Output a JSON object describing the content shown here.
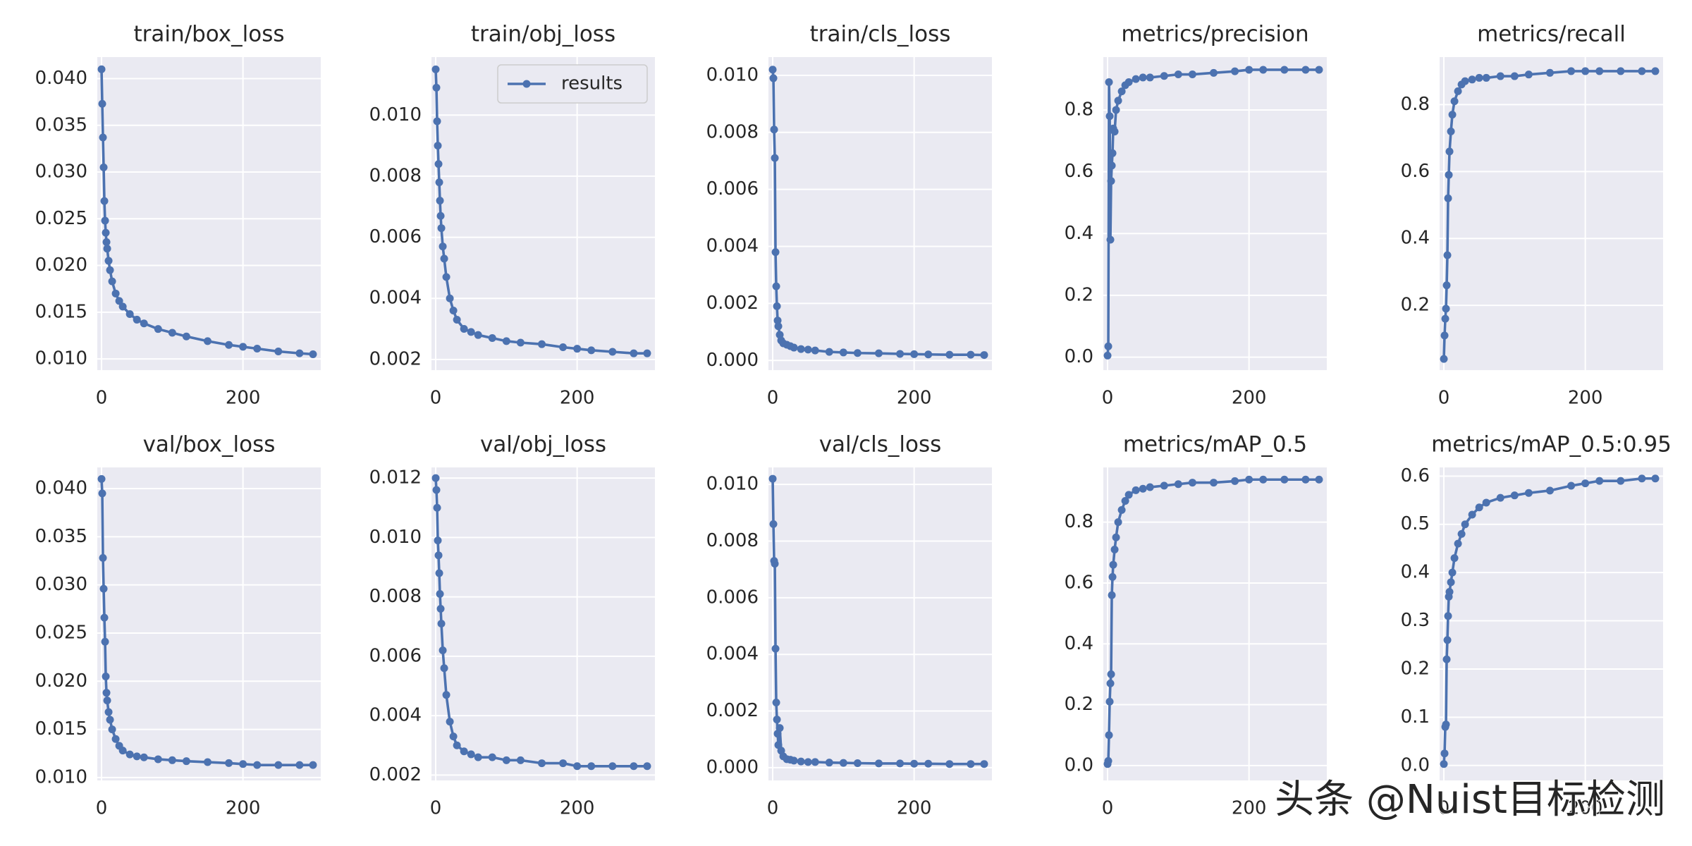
{
  "chart_data": [
    {
      "type": "line",
      "title": "train/box_loss",
      "x": [
        0,
        1,
        2,
        3,
        4,
        5,
        6,
        7,
        8,
        10,
        12,
        15,
        20,
        25,
        30,
        40,
        50,
        60,
        80,
        100,
        120,
        150,
        180,
        200,
        220,
        250,
        280,
        299
      ],
      "values": [
        0.041,
        0.0373,
        0.0337,
        0.0305,
        0.0269,
        0.0248,
        0.0235,
        0.0225,
        0.0218,
        0.0205,
        0.0195,
        0.0183,
        0.017,
        0.0162,
        0.0156,
        0.0148,
        0.0142,
        0.0138,
        0.0132,
        0.0128,
        0.0124,
        0.0119,
        0.0115,
        0.0113,
        0.0111,
        0.0108,
        0.0106,
        0.0105
      ],
      "color": "#4c72b0",
      "xlim": [
        -6,
        310
      ],
      "xticks": [
        0,
        200
      ],
      "ylim": [
        0.0088,
        0.0423
      ],
      "yticks": [
        {
          "value": 0.01,
          "label": "0.010"
        },
        0.015,
        {
          "value": 0.02,
          "label": "0.020"
        },
        0.025,
        {
          "value": 0.03,
          "label": "0.030"
        },
        0.035,
        {
          "value": 0.04,
          "label": "0.040"
        }
      ],
      "grid": true
    },
    {
      "type": "line",
      "title": "train/obj_loss",
      "x": [
        0,
        1,
        2,
        3,
        4,
        5,
        6,
        7,
        8,
        10,
        12,
        15,
        20,
        25,
        30,
        40,
        50,
        60,
        80,
        100,
        120,
        150,
        180,
        200,
        220,
        250,
        280,
        299
      ],
      "series": [
        {
          "name": "results",
          "color": "#4c72b0",
          "values": [
            0.0115,
            0.0109,
            0.0098,
            0.009,
            0.0084,
            0.0078,
            0.0072,
            0.0067,
            0.0063,
            0.0057,
            0.0053,
            0.0047,
            0.004,
            0.0036,
            0.0033,
            0.003,
            0.0029,
            0.0028,
            0.0027,
            0.0026,
            0.00255,
            0.0025,
            0.0024,
            0.00235,
            0.0023,
            0.00225,
            0.0022,
            0.0022
          ]
        }
      ],
      "legend": "upper right",
      "xlim": [
        -6,
        310
      ],
      "xticks": [
        0,
        200
      ],
      "ylim": [
        0.00165,
        0.0119
      ],
      "yticks": [
        0.002,
        0.004,
        0.006,
        0.008,
        {
          "value": 0.01,
          "label": "0.010"
        }
      ],
      "grid": true
    },
    {
      "type": "line",
      "title": "train/cls_loss",
      "x": [
        0,
        1,
        2,
        3,
        4,
        5,
        6,
        7,
        8,
        10,
        12,
        15,
        20,
        25,
        30,
        40,
        50,
        60,
        80,
        100,
        120,
        150,
        180,
        200,
        220,
        250,
        280,
        299
      ],
      "values": [
        0.0102,
        0.0099,
        0.0081,
        0.0071,
        0.0038,
        0.0026,
        0.0019,
        0.0014,
        0.0012,
        0.0009,
        0.0007,
        0.0006,
        0.00055,
        0.0005,
        0.00045,
        0.0004,
        0.00038,
        0.00035,
        0.0003,
        0.00028,
        0.00026,
        0.00025,
        0.00023,
        0.00022,
        0.00021,
        0.0002,
        0.0002,
        0.00019
      ],
      "color": "#4c72b0",
      "xlim": [
        -6,
        310
      ],
      "xticks": [
        0,
        200
      ],
      "ylim": [
        -0.00034,
        0.01064
      ],
      "yticks": [
        {
          "value": 0,
          "label": "0.000"
        },
        0.002,
        0.004,
        0.006,
        0.008,
        {
          "value": 0.01,
          "label": "0.010"
        }
      ],
      "grid": true
    },
    {
      "type": "line",
      "title": "metrics/precision",
      "x": [
        0,
        1,
        2,
        3,
        4,
        5,
        6,
        7,
        8,
        10,
        12,
        15,
        20,
        25,
        30,
        40,
        50,
        60,
        80,
        100,
        120,
        150,
        180,
        200,
        220,
        250,
        280,
        299
      ],
      "values": [
        0.005,
        0.035,
        0.89,
        0.78,
        0.38,
        0.57,
        0.62,
        0.66,
        0.74,
        0.73,
        0.8,
        0.83,
        0.86,
        0.88,
        0.89,
        0.9,
        0.905,
        0.905,
        0.91,
        0.915,
        0.915,
        0.92,
        0.925,
        0.93,
        0.93,
        0.93,
        0.93,
        0.93
      ],
      "color": "#4c72b0",
      "xlim": [
        -6,
        310
      ],
      "xticks": [
        0,
        200
      ],
      "ylim": [
        -0.042,
        0.971
      ],
      "yticks": [
        {
          "value": 0,
          "label": "0.0"
        },
        0.2,
        0.4,
        0.6,
        0.8
      ],
      "grid": true
    },
    {
      "type": "line",
      "title": "metrics/recall",
      "x": [
        0,
        1,
        2,
        3,
        4,
        5,
        6,
        7,
        8,
        10,
        12,
        15,
        20,
        25,
        30,
        40,
        50,
        60,
        80,
        100,
        120,
        150,
        180,
        200,
        220,
        250,
        280,
        299
      ],
      "values": [
        0.04,
        0.11,
        0.16,
        0.19,
        0.26,
        0.35,
        0.52,
        0.59,
        0.66,
        0.72,
        0.77,
        0.81,
        0.84,
        0.86,
        0.87,
        0.875,
        0.88,
        0.88,
        0.885,
        0.885,
        0.89,
        0.895,
        0.9,
        0.9,
        0.9,
        0.9,
        0.9,
        0.9
      ],
      "color": "#4c72b0",
      "xlim": [
        -6,
        310
      ],
      "xticks": [
        0,
        200
      ],
      "ylim": [
        0.0065,
        0.942
      ],
      "yticks": [
        0.2,
        0.4,
        0.6,
        0.8
      ],
      "grid": true
    },
    {
      "type": "line",
      "title": "val/box_loss",
      "x": [
        0,
        1,
        2,
        3,
        4,
        5,
        6,
        7,
        8,
        10,
        12,
        15,
        20,
        25,
        30,
        40,
        50,
        60,
        80,
        100,
        120,
        150,
        180,
        200,
        220,
        250,
        280,
        299
      ],
      "values": [
        0.041,
        0.0395,
        0.0328,
        0.0296,
        0.0266,
        0.0241,
        0.0205,
        0.0188,
        0.018,
        0.0168,
        0.016,
        0.015,
        0.014,
        0.0133,
        0.0128,
        0.0124,
        0.0122,
        0.0121,
        0.0119,
        0.0118,
        0.0117,
        0.0116,
        0.0115,
        0.0114,
        0.0113,
        0.0113,
        0.0113,
        0.0113
      ],
      "color": "#4c72b0",
      "xlim": [
        -6,
        310
      ],
      "xticks": [
        0,
        200
      ],
      "ylim": [
        0.0097,
        0.0422
      ],
      "yticks": [
        {
          "value": 0.01,
          "label": "0.010"
        },
        0.015,
        {
          "value": 0.02,
          "label": "0.020"
        },
        0.025,
        {
          "value": 0.03,
          "label": "0.030"
        },
        0.035,
        {
          "value": 0.04,
          "label": "0.040"
        }
      ],
      "grid": true
    },
    {
      "type": "line",
      "title": "val/obj_loss",
      "x": [
        0,
        1,
        2,
        3,
        4,
        5,
        6,
        7,
        8,
        10,
        12,
        15,
        20,
        25,
        30,
        40,
        50,
        60,
        80,
        100,
        120,
        150,
        180,
        200,
        220,
        250,
        280,
        299
      ],
      "values": [
        0.012,
        0.0116,
        0.011,
        0.0099,
        0.0094,
        0.0088,
        0.0081,
        0.0076,
        0.0071,
        0.0062,
        0.0056,
        0.0047,
        0.0038,
        0.0033,
        0.003,
        0.0028,
        0.0027,
        0.0026,
        0.0026,
        0.0025,
        0.0025,
        0.0024,
        0.0024,
        0.0023,
        0.0023,
        0.0023,
        0.0023,
        0.0023
      ],
      "color": "#4c72b0",
      "xlim": [
        -6,
        310
      ],
      "xticks": [
        0,
        200
      ],
      "ylim": [
        0.00182,
        0.01236
      ],
      "yticks": [
        0.002,
        0.004,
        0.006,
        0.008,
        {
          "value": 0.01,
          "label": "0.010"
        },
        0.012
      ],
      "grid": true
    },
    {
      "type": "line",
      "title": "val/cls_loss",
      "x": [
        0,
        1,
        2,
        3,
        4,
        5,
        6,
        7,
        8,
        10,
        12,
        15,
        20,
        25,
        30,
        40,
        50,
        60,
        80,
        100,
        120,
        150,
        180,
        200,
        220,
        250,
        280,
        299
      ],
      "values": [
        0.0102,
        0.0086,
        0.0073,
        0.0072,
        0.0042,
        0.0023,
        0.0017,
        0.0012,
        0.0008,
        0.0014,
        0.0006,
        0.0004,
        0.0003,
        0.00028,
        0.00025,
        0.00022,
        0.0002,
        0.0002,
        0.00018,
        0.00017,
        0.00016,
        0.00015,
        0.00015,
        0.00014,
        0.00014,
        0.00013,
        0.00013,
        0.00013
      ],
      "color": "#4c72b0",
      "xlim": [
        -6,
        310
      ],
      "xticks": [
        0,
        200
      ],
      "ylim": [
        -0.00045,
        0.0106
      ],
      "yticks": [
        {
          "value": 0,
          "label": "0.000"
        },
        0.002,
        0.004,
        0.006,
        0.008,
        {
          "value": 0.01,
          "label": "0.010"
        }
      ],
      "grid": true
    },
    {
      "type": "line",
      "title": "metrics/mAP_0.5",
      "x": [
        0,
        1,
        2,
        3,
        4,
        5,
        6,
        7,
        8,
        10,
        12,
        15,
        20,
        25,
        30,
        40,
        50,
        60,
        80,
        100,
        120,
        150,
        180,
        200,
        220,
        250,
        280,
        299
      ],
      "values": [
        0.005,
        0.015,
        0.1,
        0.21,
        0.27,
        0.3,
        0.56,
        0.62,
        0.66,
        0.71,
        0.75,
        0.8,
        0.84,
        0.87,
        0.89,
        0.905,
        0.91,
        0.915,
        0.92,
        0.925,
        0.93,
        0.93,
        0.935,
        0.94,
        0.94,
        0.94,
        0.94,
        0.94
      ],
      "color": "#4c72b0",
      "xlim": [
        -6,
        310
      ],
      "xticks": [
        0,
        200
      ],
      "ylim": [
        -0.049,
        0.98
      ],
      "yticks": [
        {
          "value": 0,
          "label": "0.0"
        },
        0.2,
        0.4,
        0.6,
        0.8
      ],
      "grid": true
    },
    {
      "type": "line",
      "title": "metrics/mAP_0.5:0.95",
      "x": [
        0,
        1,
        2,
        3,
        4,
        5,
        6,
        7,
        8,
        10,
        12,
        15,
        20,
        25,
        30,
        40,
        50,
        60,
        80,
        100,
        120,
        150,
        180,
        200,
        220,
        250,
        280,
        299
      ],
      "values": [
        0.003,
        0.025,
        0.08,
        0.085,
        0.22,
        0.26,
        0.31,
        0.35,
        0.36,
        0.38,
        0.4,
        0.43,
        0.46,
        0.48,
        0.5,
        0.52,
        0.535,
        0.545,
        0.555,
        0.56,
        0.565,
        0.57,
        0.58,
        0.585,
        0.59,
        0.59,
        0.595,
        0.595
      ],
      "color": "#4c72b0",
      "xlim": [
        -6,
        310
      ],
      "xticks": [
        0,
        200
      ],
      "ylim": [
        -0.031,
        0.618
      ],
      "yticks": [
        {
          "value": 0,
          "label": "0.0"
        },
        0.1,
        0.2,
        0.3,
        0.4,
        0.5,
        0.6
      ],
      "grid": true
    }
  ],
  "watermark": "头条 @Nuist目标检测"
}
